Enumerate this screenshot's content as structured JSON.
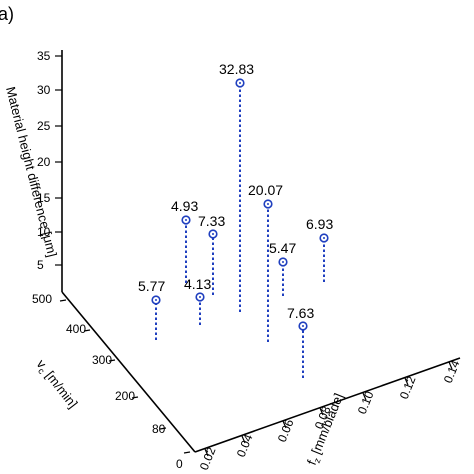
{
  "panel_label": "a)",
  "chart_data": {
    "type": "scatter",
    "subtype": "3d-stem",
    "title": "",
    "axes": {
      "z": {
        "label": "Material height difference [μm]",
        "ticks": [
          "5",
          "10",
          "15",
          "20",
          "25",
          "30",
          "35"
        ],
        "range": [
          0,
          35
        ]
      },
      "y": {
        "label": "vₑ [m/min]",
        "label_display": "v",
        "label_sub": "c",
        "label_rest": " [m/min]",
        "ticks": [
          "0",
          "80",
          "200",
          "300",
          "400",
          "500"
        ],
        "range": [
          0,
          500
        ]
      },
      "x": {
        "label": "fᵩ [mm/blade]",
        "label_display": "f",
        "label_sub": "z",
        "label_rest": " [mm/blade]",
        "ticks": [
          "0.02",
          "0.04",
          "0.06",
          "0.08",
          "0.10",
          "0.12",
          "0.14"
        ],
        "range": [
          0.02,
          0.14
        ]
      }
    },
    "points": [
      {
        "label": "5.77",
        "value": 5.77
      },
      {
        "label": "4.13",
        "value": 4.13
      },
      {
        "label": "4.93",
        "value": 4.93
      },
      {
        "label": "7.33",
        "value": 7.33
      },
      {
        "label": "32.83",
        "value": 32.83
      },
      {
        "label": "20.07",
        "value": 20.07
      },
      {
        "label": "5.47",
        "value": 5.47
      },
      {
        "label": "6.93",
        "value": 6.93
      },
      {
        "label": "7.63",
        "value": 7.63
      }
    ],
    "colors": {
      "series": "#1f3fbf"
    },
    "grid": false
  }
}
